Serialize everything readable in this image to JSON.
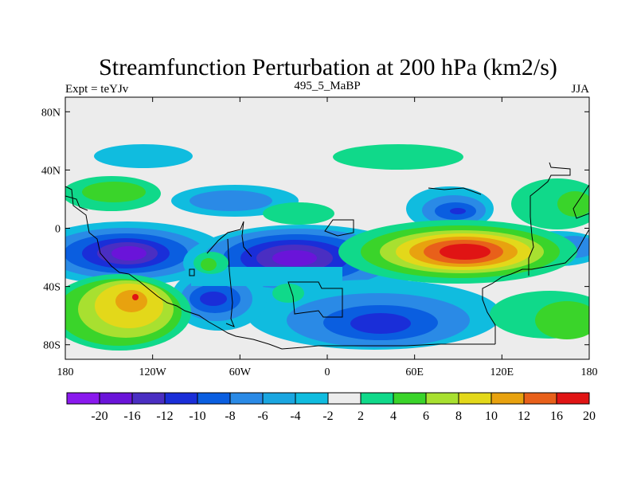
{
  "chart_data": {
    "type": "filled-contour-map",
    "title": "Streamfunction Perturbation at 200 hPa (km2/s)",
    "subtitle_left": "Expt = teYJv",
    "subtitle_center": "495_5_MaBP",
    "subtitle_right": "JJA",
    "x_ticks": [
      "180",
      "120W",
      "60W",
      "0",
      "60E",
      "120E",
      "180"
    ],
    "y_ticks": [
      "80N",
      "40N",
      "0",
      "40S",
      "80S"
    ],
    "xlim": [
      -180,
      180
    ],
    "ylim": [
      -90,
      90
    ],
    "x_tick_values": [
      -180,
      -120,
      -60,
      0,
      60,
      120,
      180
    ],
    "y_tick_values": [
      80,
      40,
      0,
      -40,
      -80
    ],
    "colorbar": {
      "labels": [
        "-20",
        "-16",
        "-12",
        "-10",
        "-8",
        "-6",
        "-4",
        "-2",
        "2",
        "4",
        "6",
        "8",
        "10",
        "12",
        "16",
        "20"
      ],
      "colors": [
        "#8a19ee",
        "#6a14d9",
        "#4a2ec2",
        "#1a2ed8",
        "#0a5ee0",
        "#2a8ae6",
        "#1aa6e0",
        "#10bcdf",
        "#ececec",
        "#10d98a",
        "#3ad42a",
        "#a8e030",
        "#e3d81a",
        "#e8a20f",
        "#e8601a",
        "#e01414"
      ]
    }
  }
}
